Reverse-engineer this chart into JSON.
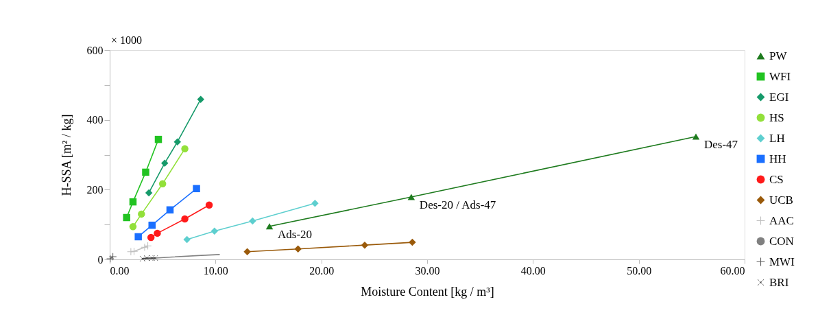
{
  "chart_data": {
    "type": "line",
    "xlabel": "Moisture Content [kg / m³]",
    "ylabel": "H-SSA  [m² / kg]",
    "xlim": [
      0,
      60
    ],
    "ylim": [
      0,
      600
    ],
    "xticks": [
      {
        "value": 0,
        "label": "0.00"
      },
      {
        "value": 10,
        "label": "10.00"
      },
      {
        "value": 20,
        "label": "20.00"
      },
      {
        "value": 30,
        "label": "30.00"
      },
      {
        "value": 40,
        "label": "40.00"
      },
      {
        "value": 50,
        "label": "50.00"
      },
      {
        "value": 60,
        "label": "60.00"
      }
    ],
    "yticks": [
      0,
      {
        "value": 100,
        "label": null
      },
      200,
      {
        "value": 300,
        "label": null
      },
      400,
      {
        "value": 500,
        "label": null
      },
      600
    ],
    "grid": false,
    "legend": "right",
    "line_style": "solid",
    "annotations": [
      "× 1000",
      {
        "text": "Ads-20",
        "x": 15.1,
        "y": 95
      },
      {
        "text": "Des-20 / Ads-47",
        "x": 28.5,
        "y": 179
      },
      {
        "text": "Des-47",
        "x": 55.4,
        "y": 352
      }
    ],
    "series": [
      {
        "name": "PW",
        "color": "#1e7b1e",
        "marker": "triangle",
        "x": [
          15.1,
          28.5,
          55.4
        ],
        "values": [
          95,
          179,
          352
        ]
      },
      {
        "name": "WFI",
        "color": "#22c322",
        "marker": "square",
        "x": [
          1.6,
          2.2,
          3.4,
          4.6
        ],
        "values": [
          120,
          165,
          250,
          344
        ]
      },
      {
        "name": "EGI",
        "color": "#169a6a",
        "marker": "diamond",
        "x": [
          3.7,
          5.2,
          6.4,
          8.6
        ],
        "values": [
          191,
          276,
          337,
          459
        ]
      },
      {
        "name": "HS",
        "color": "#92e03a",
        "marker": "circle",
        "x": [
          2.2,
          3.0,
          5.0,
          7.1
        ],
        "values": [
          94,
          130,
          217,
          317
        ]
      },
      {
        "name": "LH",
        "color": "#5ecfcf",
        "marker": "diamond",
        "x": [
          7.3,
          9.9,
          13.5,
          19.4
        ],
        "values": [
          57,
          81,
          110,
          161
        ]
      },
      {
        "name": "HH",
        "color": "#1a6fff",
        "marker": "square",
        "x": [
          2.7,
          4.0,
          5.7,
          8.2
        ],
        "values": [
          65,
          98,
          142,
          203
        ]
      },
      {
        "name": "CS",
        "color": "#ff1a1a",
        "marker": "circle",
        "x": [
          3.9,
          4.5,
          7.1,
          9.4
        ],
        "values": [
          63,
          75,
          116,
          156
        ]
      },
      {
        "name": "UCB",
        "color": "#9a5a0a",
        "marker": "diamond",
        "x": [
          13.0,
          17.8,
          24.1,
          28.6
        ],
        "values": [
          22,
          30,
          41,
          49
        ]
      },
      {
        "name": "AAC",
        "color": "#c0c0c0",
        "marker": "plus",
        "x": [
          2.0,
          2.3,
          3.3,
          3.6
        ],
        "values": [
          22,
          23,
          35,
          39
        ]
      },
      {
        "name": "CON",
        "color": "#808080",
        "marker": "none",
        "x": [
          3.3,
          5.9,
          9.0,
          10.4
        ],
        "values": [
          2,
          7,
          12,
          14
        ]
      },
      {
        "name": "MWI",
        "color": "#606060",
        "marker": "plus",
        "x": [
          0.05,
          0.3
        ],
        "values": [
          2,
          8
        ]
      },
      {
        "name": "BRI",
        "color": "#404040",
        "marker": "x",
        "x": [
          3.1,
          3.5,
          4.0,
          4.3
        ],
        "values": [
          2,
          4,
          4,
          4
        ]
      }
    ]
  }
}
